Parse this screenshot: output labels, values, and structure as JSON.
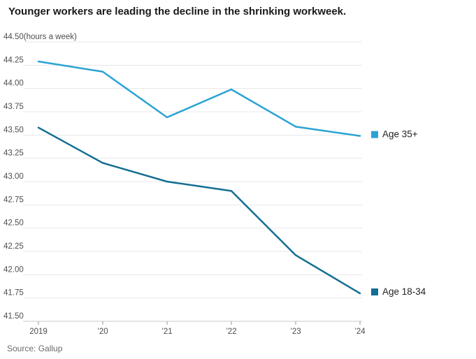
{
  "title": "Younger workers are leading the decline in the shrinking workweek.",
  "source": "Source: Gallup",
  "colors": {
    "age_35_plus_line": "#2aa3d3",
    "age_18_34_line": "#136e93",
    "gridline": "#e8e8e8",
    "axis_line": "#c9c9c9",
    "tick_mark": "#999999",
    "tick_label_text": "#4d4d4d",
    "title_text": "#1a1a1a",
    "source_text": "#6b6b6b"
  },
  "chart_data": {
    "type": "line",
    "title": "Younger workers are leading the decline in the shrinking workweek.",
    "unit_label": "(hours a week)",
    "ylabel": "hours a week",
    "xlabel": "",
    "x": [
      2019,
      2020,
      2021,
      2022,
      2023,
      2024
    ],
    "x_tick_labels": [
      "2019",
      "’20",
      "’21",
      "’22",
      "’23",
      "’24"
    ],
    "ylim": [
      41.5,
      44.5
    ],
    "ytick_step": 0.25,
    "ytick_labels": [
      "44.50",
      "44.25",
      "44.00",
      "43.75",
      "43.50",
      "43.25",
      "43.00",
      "42.75",
      "42.50",
      "42.25",
      "42.00",
      "41.75",
      "41.50"
    ],
    "grid": true,
    "legend_position": "right of final data points",
    "series": [
      {
        "name": "Age 35+",
        "color": "#2aa3d3",
        "values": [
          44.29,
          44.18,
          43.69,
          43.99,
          43.59,
          43.49
        ]
      },
      {
        "name": "Age 18-34",
        "color": "#136e93",
        "values": [
          43.58,
          43.2,
          43.0,
          42.9,
          42.21,
          41.8
        ]
      }
    ]
  }
}
